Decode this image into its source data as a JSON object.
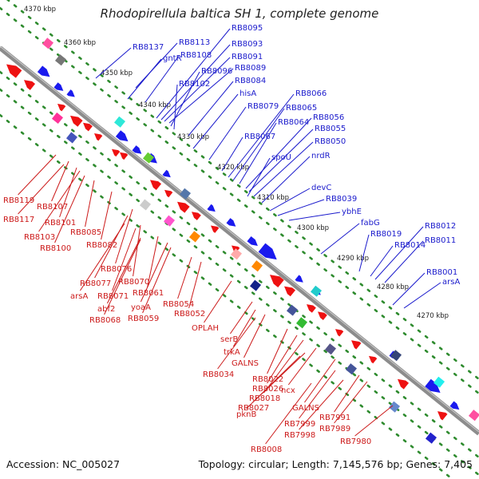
{
  "title": "Rhodopirellula baltica SH 1, complete genome",
  "footer": {
    "accession": "Accession: NC_005027",
    "summary": "Topology: circular; Length: 7,145,576 bp; Genes: 7,405"
  },
  "colors": {
    "backbone": "#8c8c8c",
    "tick_dots": "#2e8b2e",
    "forward_label": "#1a1acc",
    "reverse_label": "#cc1a1a"
  },
  "scale_labels": [
    "4370 kbp",
    "4360 kbp",
    "4350 kbp",
    "4340 kbp",
    "4330 kbp",
    "4320 kbp",
    "4310 kbp",
    "4300 kbp",
    "4290 kbp",
    "4280 kbp",
    "4270 kbp"
  ],
  "forward_labels": [
    "RB8137",
    "RB8113",
    "gntR",
    "RB8108",
    "RB8095",
    "RB8093",
    "RB8091",
    "RB8089",
    "RB8096",
    "RB8102",
    "RB8084",
    "hisA",
    "RB8079",
    "RB8066",
    "RB8065",
    "RB8064",
    "RB8056",
    "RB8055",
    "RB8067",
    "RB8050",
    "spoU",
    "nrdR",
    "devC",
    "RB8039",
    "ybhE",
    "fabG",
    "RB8012",
    "RB8019",
    "RB8011",
    "RB8014",
    "RB8001",
    "arsA"
  ],
  "reverse_labels": [
    "RB8119",
    "RB8107",
    "RB8117",
    "RB8101",
    "RB8103",
    "RB8085",
    "RB8100",
    "RB8082",
    "RB8076",
    "RB8077",
    "RB8070",
    "arsA",
    "RB8071",
    "RB8061",
    "abf2",
    "yoaA",
    "RB8068",
    "RB8059",
    "RB8054",
    "RB8052",
    "OPLAH",
    "serB",
    "trkA",
    "GALNS",
    "RB8034",
    "RB8022",
    "RB8026",
    "RB8018",
    "ncx",
    "RB8027",
    "pknB",
    "GALNS",
    "RB7991",
    "RB7999",
    "RB7989",
    "RB7998",
    "RB7980",
    "RB8008"
  ]
}
